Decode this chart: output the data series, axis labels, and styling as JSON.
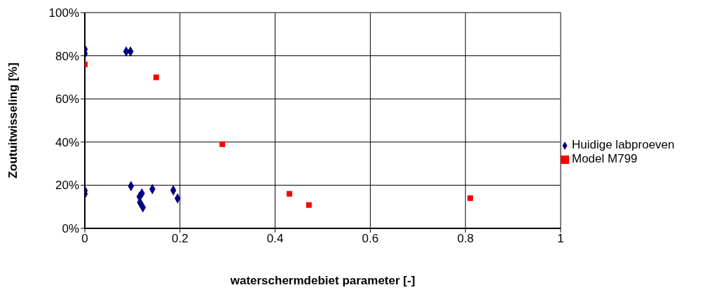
{
  "chart_data": {
    "type": "scatter",
    "xlabel": "waterschermdebiet parameter [-]",
    "ylabel": "Zoutuitwisseling [%]",
    "xlim": [
      0,
      1
    ],
    "xticks": [
      0,
      0.2,
      0.4,
      0.6,
      0.8,
      1
    ],
    "ylim": [
      0,
      100
    ],
    "yticks": [
      {
        "value": 0,
        "label": "0%"
      },
      {
        "value": 20,
        "label": "20%"
      },
      {
        "value": 40,
        "label": "40%"
      },
      {
        "value": 60,
        "label": "60%"
      },
      {
        "value": 80,
        "label": "80%"
      },
      {
        "value": 100,
        "label": "100%"
      }
    ],
    "grid": true,
    "legend": "right",
    "series": [
      {
        "name": "Huidige labproeven",
        "color": "#000080",
        "marker": "diamond",
        "x": [
          0,
          0,
          0.087,
          0.096,
          0,
          0,
          0.097,
          0.12,
          0.115,
          0.116,
          0.122,
          0.142,
          0.186,
          0.195
        ],
        "values": [
          83,
          81,
          82,
          82,
          17.5,
          16,
          19.6,
          16.2,
          14.7,
          12,
          9.7,
          18.2,
          17.6,
          13.9
        ]
      },
      {
        "name": "Model M799",
        "color": "#ff0000",
        "marker": "square",
        "x": [
          0,
          0.15,
          0.289,
          0.43,
          0.471,
          0.81
        ],
        "values": [
          76,
          70,
          39,
          16,
          10.8,
          14
        ]
      }
    ]
  }
}
